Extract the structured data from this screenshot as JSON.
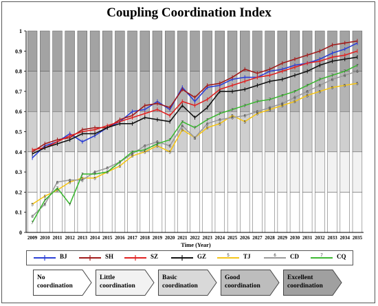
{
  "chart_data": {
    "type": "line",
    "title": "Coupling Coordination Index",
    "xlabel": "Time (Year)",
    "ylabel": "",
    "ylim": [
      0,
      1
    ],
    "yticks": [
      "0",
      "0.1",
      "0.2",
      "0.3",
      "0.4",
      "0.5",
      "0.6",
      "0.7",
      "0.8",
      "0.9",
      "1"
    ],
    "x": [
      "2009",
      "2010",
      "2011",
      "2012",
      "2013",
      "2014",
      "2015",
      "2016",
      "2017",
      "2018",
      "2019",
      "2020",
      "2021",
      "2022",
      "2023",
      "2024",
      "2025",
      "2026",
      "2027",
      "2028",
      "2029",
      "2030",
      "2031",
      "2032",
      "2033",
      "2034",
      "2035"
    ],
    "grid": "vertical alternating grey bars",
    "legend_position": "bottom",
    "series": [
      {
        "name": "BJ",
        "marker": "1",
        "color": "#2b3fd6",
        "values": [
          0.37,
          0.43,
          0.45,
          0.49,
          0.45,
          0.48,
          0.52,
          0.55,
          0.6,
          0.61,
          0.65,
          0.61,
          0.72,
          0.65,
          0.72,
          0.73,
          0.76,
          0.77,
          0.77,
          0.8,
          0.81,
          0.83,
          0.84,
          0.86,
          0.89,
          0.91,
          0.94
        ]
      },
      {
        "name": "SH",
        "marker": "2",
        "color": "#a01a1a",
        "values": [
          0.4,
          0.44,
          0.46,
          0.47,
          0.51,
          0.52,
          0.52,
          0.56,
          0.58,
          0.63,
          0.64,
          0.62,
          0.71,
          0.67,
          0.73,
          0.74,
          0.77,
          0.81,
          0.79,
          0.81,
          0.84,
          0.86,
          0.88,
          0.9,
          0.93,
          0.94,
          0.95
        ]
      },
      {
        "name": "SZ",
        "marker": "3",
        "color": "#e02020",
        "values": [
          0.41,
          0.42,
          0.45,
          0.48,
          0.5,
          0.51,
          0.53,
          0.55,
          0.57,
          0.59,
          0.61,
          0.58,
          0.65,
          0.63,
          0.66,
          0.71,
          0.73,
          0.75,
          0.77,
          0.78,
          0.8,
          0.82,
          0.84,
          0.85,
          0.87,
          0.88,
          0.9
        ]
      },
      {
        "name": "GZ",
        "marker": "4",
        "color": "#111111",
        "values": [
          0.39,
          0.42,
          0.44,
          0.46,
          0.49,
          0.49,
          0.52,
          0.54,
          0.54,
          0.57,
          0.56,
          0.55,
          0.63,
          0.57,
          0.62,
          0.7,
          0.7,
          0.71,
          0.73,
          0.75,
          0.76,
          0.78,
          0.8,
          0.83,
          0.85,
          0.86,
          0.87
        ]
      },
      {
        "name": "TJ",
        "marker": "5",
        "color": "#f5c518",
        "values": [
          0.14,
          0.18,
          0.21,
          0.25,
          0.27,
          0.27,
          0.3,
          0.33,
          0.38,
          0.4,
          0.43,
          0.4,
          0.51,
          0.47,
          0.52,
          0.54,
          0.58,
          0.55,
          0.59,
          0.61,
          0.63,
          0.65,
          0.68,
          0.7,
          0.72,
          0.73,
          0.74
        ]
      },
      {
        "name": "CD",
        "marker": "6",
        "color": "#9a9a9a",
        "values": [
          0.08,
          0.14,
          0.25,
          0.26,
          0.26,
          0.3,
          0.32,
          0.35,
          0.39,
          0.43,
          0.45,
          0.43,
          0.53,
          0.47,
          0.54,
          0.56,
          0.57,
          0.58,
          0.6,
          0.62,
          0.64,
          0.67,
          0.7,
          0.73,
          0.76,
          0.78,
          0.8
        ]
      },
      {
        "name": "CQ",
        "marker": "7",
        "color": "#3cb832",
        "values": [
          0.05,
          0.16,
          0.22,
          0.14,
          0.29,
          0.29,
          0.3,
          0.35,
          0.4,
          0.41,
          0.44,
          0.46,
          0.55,
          0.52,
          0.56,
          0.59,
          0.61,
          0.63,
          0.65,
          0.66,
          0.68,
          0.7,
          0.73,
          0.76,
          0.78,
          0.8,
          0.83
        ]
      }
    ]
  },
  "levels": [
    {
      "label": "No\ncoordination",
      "fill": "#ffffff"
    },
    {
      "label": "Little\ncoordination",
      "fill": "#f2f2f2"
    },
    {
      "label": "Basic\ncoordination",
      "fill": "#d9d9d9"
    },
    {
      "label": "Good\ncoordination",
      "fill": "#bdbdbd"
    },
    {
      "label": "Excellent\ncoordination",
      "fill": "#a0a0a0"
    }
  ]
}
